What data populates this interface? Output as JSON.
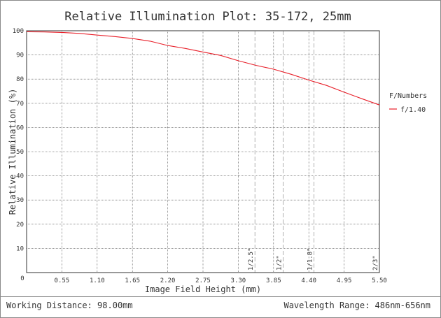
{
  "chart_data": {
    "type": "line",
    "title": "Relative Illumination Plot: 35-172, 25mm",
    "xlabel": "Image Field Height (mm)",
    "ylabel": "Relative Illumination (%)",
    "xlim": [
      0,
      5.5
    ],
    "ylim": [
      0,
      100
    ],
    "x_ticks": [
      "0",
      "0.55",
      "1.10",
      "1.65",
      "2.20",
      "2.75",
      "3.30",
      "3.85",
      "4.40",
      "4.95",
      "5.50"
    ],
    "y_ticks": [
      "10",
      "20",
      "30",
      "40",
      "50",
      "60",
      "70",
      "80",
      "90",
      "100"
    ],
    "grid": true,
    "legend_title": "F/Numbers",
    "legend_position": "right",
    "series": [
      {
        "name": "f/1.40",
        "color": "#e8202a",
        "x": [
          0,
          0.275,
          0.55,
          0.825,
          1.1,
          1.375,
          1.65,
          1.925,
          2.2,
          2.475,
          2.75,
          3.025,
          3.3,
          3.575,
          3.85,
          4.125,
          4.4,
          4.675,
          4.95,
          5.225,
          5.5
        ],
        "values": [
          99.6,
          99.5,
          99.3,
          98.9,
          98.2,
          97.6,
          96.8,
          95.7,
          93.9,
          92.7,
          91.2,
          89.8,
          87.6,
          85.7,
          84.1,
          82.0,
          79.6,
          77.4,
          74.6,
          71.9,
          69.3
        ]
      }
    ],
    "sensor_markers": [
      {
        "label": "1/2.5\"",
        "x": 3.56
      },
      {
        "label": "1/2\"",
        "x": 4.0
      },
      {
        "label": "1/1.8\"",
        "x": 4.48
      },
      {
        "label": "2/3\"",
        "x": 5.5
      }
    ]
  },
  "footer": {
    "working_distance": "Working Distance: 98.00mm",
    "wavelength_range": "Wavelength Range: 486nm-656nm"
  }
}
